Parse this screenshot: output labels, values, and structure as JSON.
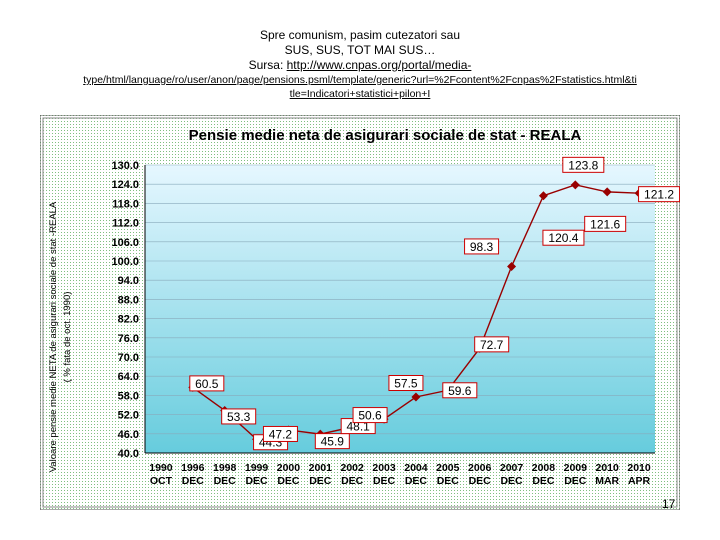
{
  "header": {
    "line1": "Spre comunism, pasim cutezatori sau",
    "line2": "SUS, SUS, TOT MAI SUS…",
    "source_label": "Sursa: ",
    "source_link_1": "http://www.cnpas.org/portal/media-",
    "source_link_2a": "type/html/language/ro/user/anon/page/pensions.psml/template/generic?url=%2Fcontent%2Fcnpas%2Fstatistics.html&ti",
    "source_link_2b": "tle=Indicatori+statistici+pilon+I"
  },
  "slide_number": "17",
  "colors": {
    "line": "#990000",
    "marker": "#990000",
    "label_border": "#cc0000",
    "plot_bg_top": "#e6f7ff",
    "plot_bg_bottom": "#66ccdd"
  },
  "chart_data": {
    "type": "line",
    "title": "Pensie medie neta de asigurari sociale de stat - REALA",
    "ylabel_line1": "Valoare pensie medie NETA de asigurari sociale de stat -REALA",
    "ylabel_line2": "( % fata de oct. 1990)",
    "ylim": [
      40,
      130
    ],
    "yticks": [
      "130.0",
      "124.0",
      "118.0",
      "112.0",
      "106.0",
      "100.0",
      "94.0",
      "88.0",
      "82.0",
      "76.0",
      "70.0",
      "64.0",
      "58.0",
      "52.0",
      "46.0",
      "40.0"
    ],
    "categories": [
      {
        "year": "1990",
        "month": "OCT"
      },
      {
        "year": "1996",
        "month": "DEC"
      },
      {
        "year": "1998",
        "month": "DEC"
      },
      {
        "year": "1999",
        "month": "DEC"
      },
      {
        "year": "2000",
        "month": "DEC"
      },
      {
        "year": "2001",
        "month": "DEC"
      },
      {
        "year": "2002",
        "month": "DEC"
      },
      {
        "year": "2003",
        "month": "DEC"
      },
      {
        "year": "2004",
        "month": "DEC"
      },
      {
        "year": "2005",
        "month": "DEC"
      },
      {
        "year": "2006",
        "month": "DEC"
      },
      {
        "year": "2007",
        "month": "DEC"
      },
      {
        "year": "2008",
        "month": "DEC"
      },
      {
        "year": "2009",
        "month": "DEC"
      },
      {
        "year": "2010",
        "month": "MAR"
      },
      {
        "year": "2010",
        "month": "APR"
      }
    ],
    "series": [
      {
        "points": [
          {
            "x": "1996 DEC",
            "y": 60.5,
            "label": "60.5"
          },
          {
            "x": "1998 DEC",
            "y": 53.3,
            "label": "53.3"
          },
          {
            "x": "1999 DEC",
            "y": 44.3,
            "label": "44.3"
          },
          {
            "x": "2000 DEC",
            "y": 47.2,
            "label": "47.2"
          },
          {
            "x": "2001 DEC",
            "y": 45.9,
            "label": "45.9"
          },
          {
            "x": "2002 DEC",
            "y": 48.1,
            "label": "48.1"
          },
          {
            "x": "2003 DEC",
            "y": 50.6,
            "label": "50.6"
          },
          {
            "x": "2004 DEC",
            "y": 57.5,
            "label": "57.5"
          },
          {
            "x": "2005 DEC",
            "y": 59.6,
            "label": "59.6"
          },
          {
            "x": "2006 DEC",
            "y": 72.7,
            "label": "72.7"
          },
          {
            "x": "2007 DEC",
            "y": 98.3,
            "label": "98.3"
          },
          {
            "x": "2008 DEC",
            "y": 120.4,
            "label": "120.4"
          },
          {
            "x": "2009 DEC",
            "y": 123.8,
            "label": "123.8"
          },
          {
            "x": "2010 MAR",
            "y": 121.6,
            "label": "121.6"
          },
          {
            "x": "2010 APR",
            "y": 121.2,
            "label": "121.2"
          }
        ]
      }
    ],
    "grid": true,
    "legend": "none"
  }
}
